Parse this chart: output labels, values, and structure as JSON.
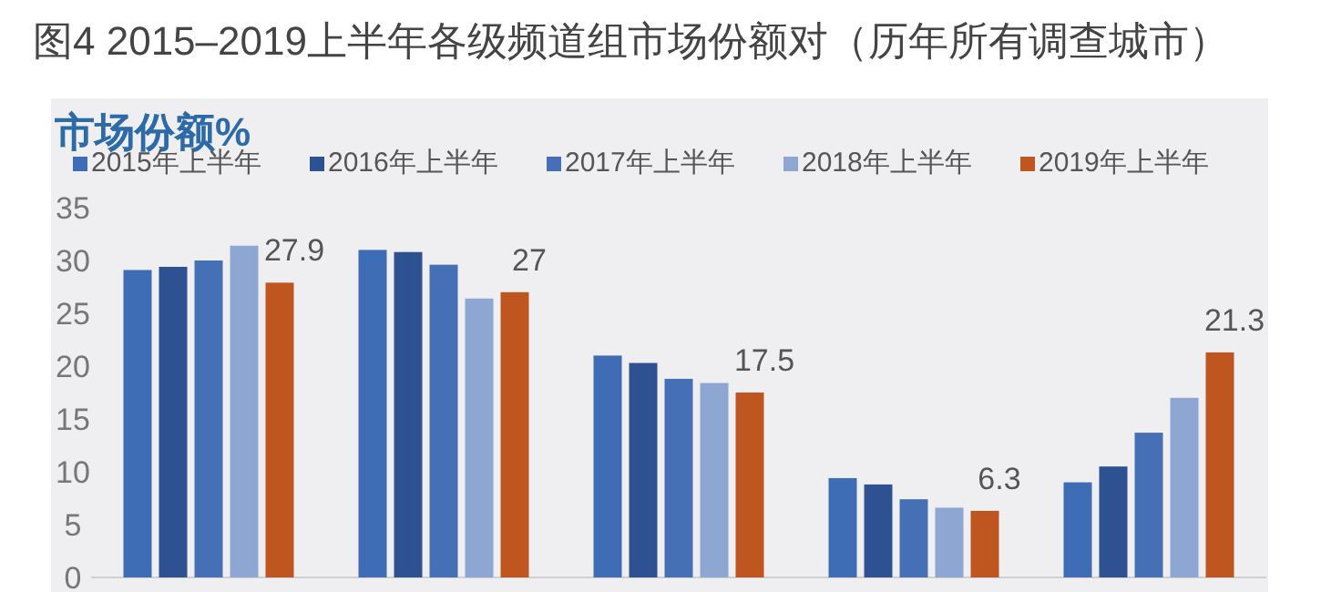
{
  "chart_data": {
    "type": "bar",
    "title": "图4  2015–2019上半年各级频道组市场份额对（历年所有调查城市）",
    "subtitle": "市场份额%",
    "categories": [
      null,
      null,
      null,
      null,
      null
    ],
    "series": [
      {
        "name": "2015年上半年",
        "color": "#3f6db5",
        "values": [
          29.1,
          31.0,
          21.0,
          9.4,
          9.0
        ]
      },
      {
        "name": "2016年上半年",
        "color": "#2e5191",
        "values": [
          29.4,
          30.8,
          20.3,
          8.8,
          10.5
        ]
      },
      {
        "name": "2017年上半年",
        "color": "#4570b6",
        "values": [
          30.0,
          29.6,
          18.8,
          7.4,
          13.7
        ]
      },
      {
        "name": "2018年上半年",
        "color": "#8ea6d2",
        "values": [
          31.4,
          26.4,
          18.4,
          6.6,
          17.0
        ]
      },
      {
        "name": "2019年上半年",
        "color": "#c0561f",
        "values": [
          27.9,
          27,
          17.5,
          6.3,
          21.3
        ],
        "value_labels": [
          "27.9",
          "27",
          "17.5",
          "6.3",
          "21.3"
        ]
      }
    ],
    "ylim": [
      0,
      35
    ],
    "yticks": [
      0,
      5,
      10,
      15,
      20,
      25,
      30,
      35
    ],
    "grid": false,
    "legend": "top"
  }
}
